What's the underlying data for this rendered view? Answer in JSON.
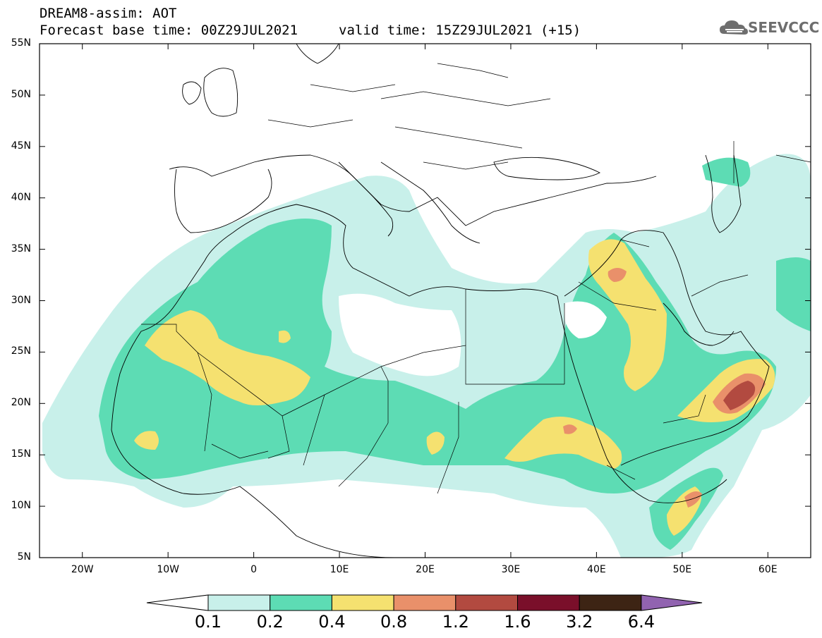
{
  "title": {
    "line1": "DREAM8-assim: AOT",
    "base_time": "Forecast base time: 00Z29JUL2021",
    "valid_time": "valid time: 15Z29JUL2021 (+15)"
  },
  "logo": {
    "text": "SEEVCCC",
    "icon": "cloud-logo-icon"
  },
  "map": {
    "lat_ticks": [
      "55N",
      "50N",
      "45N",
      "40N",
      "35N",
      "30N",
      "25N",
      "20N",
      "15N",
      "10N",
      "5N"
    ],
    "lon_ticks": [
      "20W",
      "10W",
      "0",
      "10E",
      "20E",
      "30E",
      "40E",
      "50E",
      "60E"
    ],
    "lat_range": [
      5,
      55
    ],
    "lon_range": [
      -25,
      65
    ]
  },
  "colorbar": {
    "labels": [
      "0.1",
      "0.2",
      "0.4",
      "0.8",
      "1.2",
      "1.6",
      "3.2",
      "6.4"
    ],
    "colors": [
      "#ffffff",
      "#c8f0ea",
      "#5ddcb4",
      "#f5e170",
      "#e9906a",
      "#b24a40",
      "#7a0f2a",
      "#3d2414",
      "#9163b0"
    ]
  }
}
